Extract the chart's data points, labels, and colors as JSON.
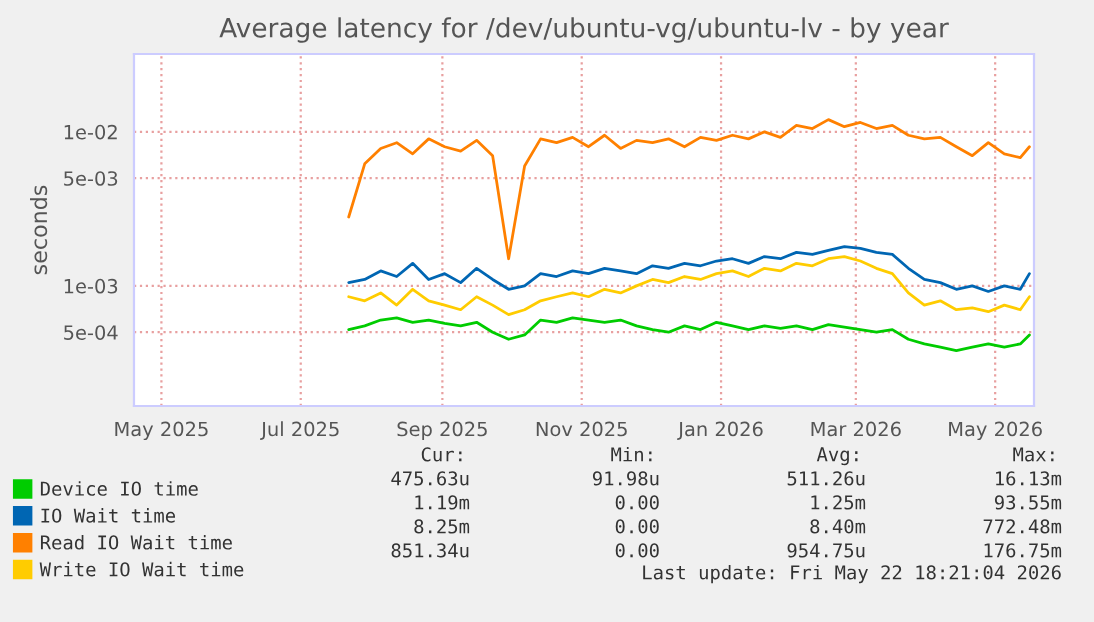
{
  "chart_data": {
    "type": "line",
    "title": "Average latency for /dev/ubuntu-vg/ubuntu-lv - by year",
    "ylabel": "seconds",
    "x": [
      "2025-07-22",
      "2025-07-29",
      "2025-08-05",
      "2025-08-12",
      "2025-08-19",
      "2025-08-26",
      "2025-09-02",
      "2025-09-09",
      "2025-09-16",
      "2025-09-23",
      "2025-09-30",
      "2025-10-07",
      "2025-10-14",
      "2025-10-21",
      "2025-10-28",
      "2025-11-04",
      "2025-11-11",
      "2025-11-18",
      "2025-11-25",
      "2025-12-02",
      "2025-12-09",
      "2025-12-16",
      "2025-12-23",
      "2025-12-30",
      "2026-01-06",
      "2026-01-13",
      "2026-01-20",
      "2026-01-27",
      "2026-02-03",
      "2026-02-10",
      "2026-02-17",
      "2026-02-24",
      "2026-03-03",
      "2026-03-10",
      "2026-03-17",
      "2026-03-24",
      "2026-03-31",
      "2026-04-07",
      "2026-04-14",
      "2026-04-21",
      "2026-04-28",
      "2026-05-05",
      "2026-05-12",
      "2026-05-16"
    ],
    "series": [
      {
        "name": "Device IO time",
        "color": "#00cc00",
        "values": [
          0.00052,
          0.00055,
          0.0006,
          0.00062,
          0.00058,
          0.0006,
          0.00057,
          0.00055,
          0.00058,
          0.0005,
          0.00045,
          0.00048,
          0.0006,
          0.00058,
          0.00062,
          0.0006,
          0.00058,
          0.0006,
          0.00055,
          0.00052,
          0.0005,
          0.00055,
          0.00052,
          0.00058,
          0.00055,
          0.00052,
          0.00055,
          0.00053,
          0.00055,
          0.00052,
          0.00056,
          0.00054,
          0.00052,
          0.0005,
          0.00052,
          0.00045,
          0.00042,
          0.0004,
          0.00038,
          0.0004,
          0.00042,
          0.0004,
          0.00042,
          0.00048
        ]
      },
      {
        "name": "IO Wait time",
        "color": "#0066b3",
        "values": [
          0.00105,
          0.0011,
          0.00125,
          0.00115,
          0.0014,
          0.0011,
          0.0012,
          0.00105,
          0.0013,
          0.0011,
          0.00095,
          0.001,
          0.0012,
          0.00115,
          0.00125,
          0.0012,
          0.0013,
          0.00125,
          0.0012,
          0.00135,
          0.0013,
          0.0014,
          0.00135,
          0.00145,
          0.0015,
          0.0014,
          0.00155,
          0.0015,
          0.00165,
          0.0016,
          0.0017,
          0.0018,
          0.00175,
          0.00165,
          0.0016,
          0.0013,
          0.0011,
          0.00105,
          0.00095,
          0.001,
          0.00092,
          0.001,
          0.00095,
          0.0012
        ]
      },
      {
        "name": "Read IO Wait time",
        "color": "#ff8000",
        "values": [
          0.0028,
          0.0062,
          0.0078,
          0.0085,
          0.0072,
          0.009,
          0.008,
          0.0075,
          0.0088,
          0.007,
          0.0015,
          0.006,
          0.009,
          0.0085,
          0.0092,
          0.008,
          0.0095,
          0.0078,
          0.0088,
          0.0085,
          0.009,
          0.008,
          0.0092,
          0.0088,
          0.0095,
          0.009,
          0.01,
          0.0092,
          0.011,
          0.0105,
          0.012,
          0.0108,
          0.0115,
          0.0105,
          0.011,
          0.0095,
          0.009,
          0.0092,
          0.008,
          0.007,
          0.0085,
          0.0072,
          0.0068,
          0.008
        ]
      },
      {
        "name": "Write IO Wait time",
        "color": "#ffcc00",
        "values": [
          0.00085,
          0.0008,
          0.0009,
          0.00075,
          0.00095,
          0.0008,
          0.00075,
          0.0007,
          0.00085,
          0.00075,
          0.00065,
          0.0007,
          0.0008,
          0.00085,
          0.0009,
          0.00085,
          0.00095,
          0.0009,
          0.001,
          0.0011,
          0.00105,
          0.00115,
          0.0011,
          0.0012,
          0.00125,
          0.00115,
          0.0013,
          0.00125,
          0.0014,
          0.00135,
          0.0015,
          0.00155,
          0.00145,
          0.0013,
          0.0012,
          0.0009,
          0.00075,
          0.0008,
          0.0007,
          0.00072,
          0.00068,
          0.00075,
          0.0007,
          0.00085
        ]
      }
    ],
    "log": "y",
    "ylim": [
      0.000166,
      0.032
    ],
    "yticks": [
      {
        "value": 0.0005,
        "label": "5e-04"
      },
      {
        "value": 0.001,
        "label": "1e-03"
      },
      {
        "value": 0.005,
        "label": "5e-03"
      },
      {
        "value": 0.01,
        "label": "1e-02"
      }
    ],
    "xlim": [
      "2025-04-19",
      "2026-05-18"
    ],
    "xticks": [
      {
        "value": "2025-05-01",
        "label": "May 2025"
      },
      {
        "value": "2025-07-01",
        "label": "Jul 2025"
      },
      {
        "value": "2025-09-01",
        "label": "Sep 2025"
      },
      {
        "value": "2025-11-01",
        "label": "Nov 2025"
      },
      {
        "value": "2026-01-01",
        "label": "Jan 2026"
      },
      {
        "value": "2026-03-01",
        "label": "Mar 2026"
      },
      {
        "value": "2026-05-01",
        "label": "May 2026"
      }
    ],
    "grid": true,
    "legend": "bottom",
    "line_style": "solid",
    "marker": "none",
    "annotations": [
      "Cur:",
      "Min:",
      "Avg:",
      "Max:",
      "475.63u",
      "91.98u",
      "511.26u",
      "16.13m",
      "1.19m",
      "0.00",
      "1.25m",
      "93.55m",
      "8.25m",
      "0.00",
      "8.40m",
      "772.48m",
      "851.34u",
      "0.00",
      "954.75u",
      "176.75m",
      "Last update: Fri May 22 18:21:04 2026"
    ]
  }
}
